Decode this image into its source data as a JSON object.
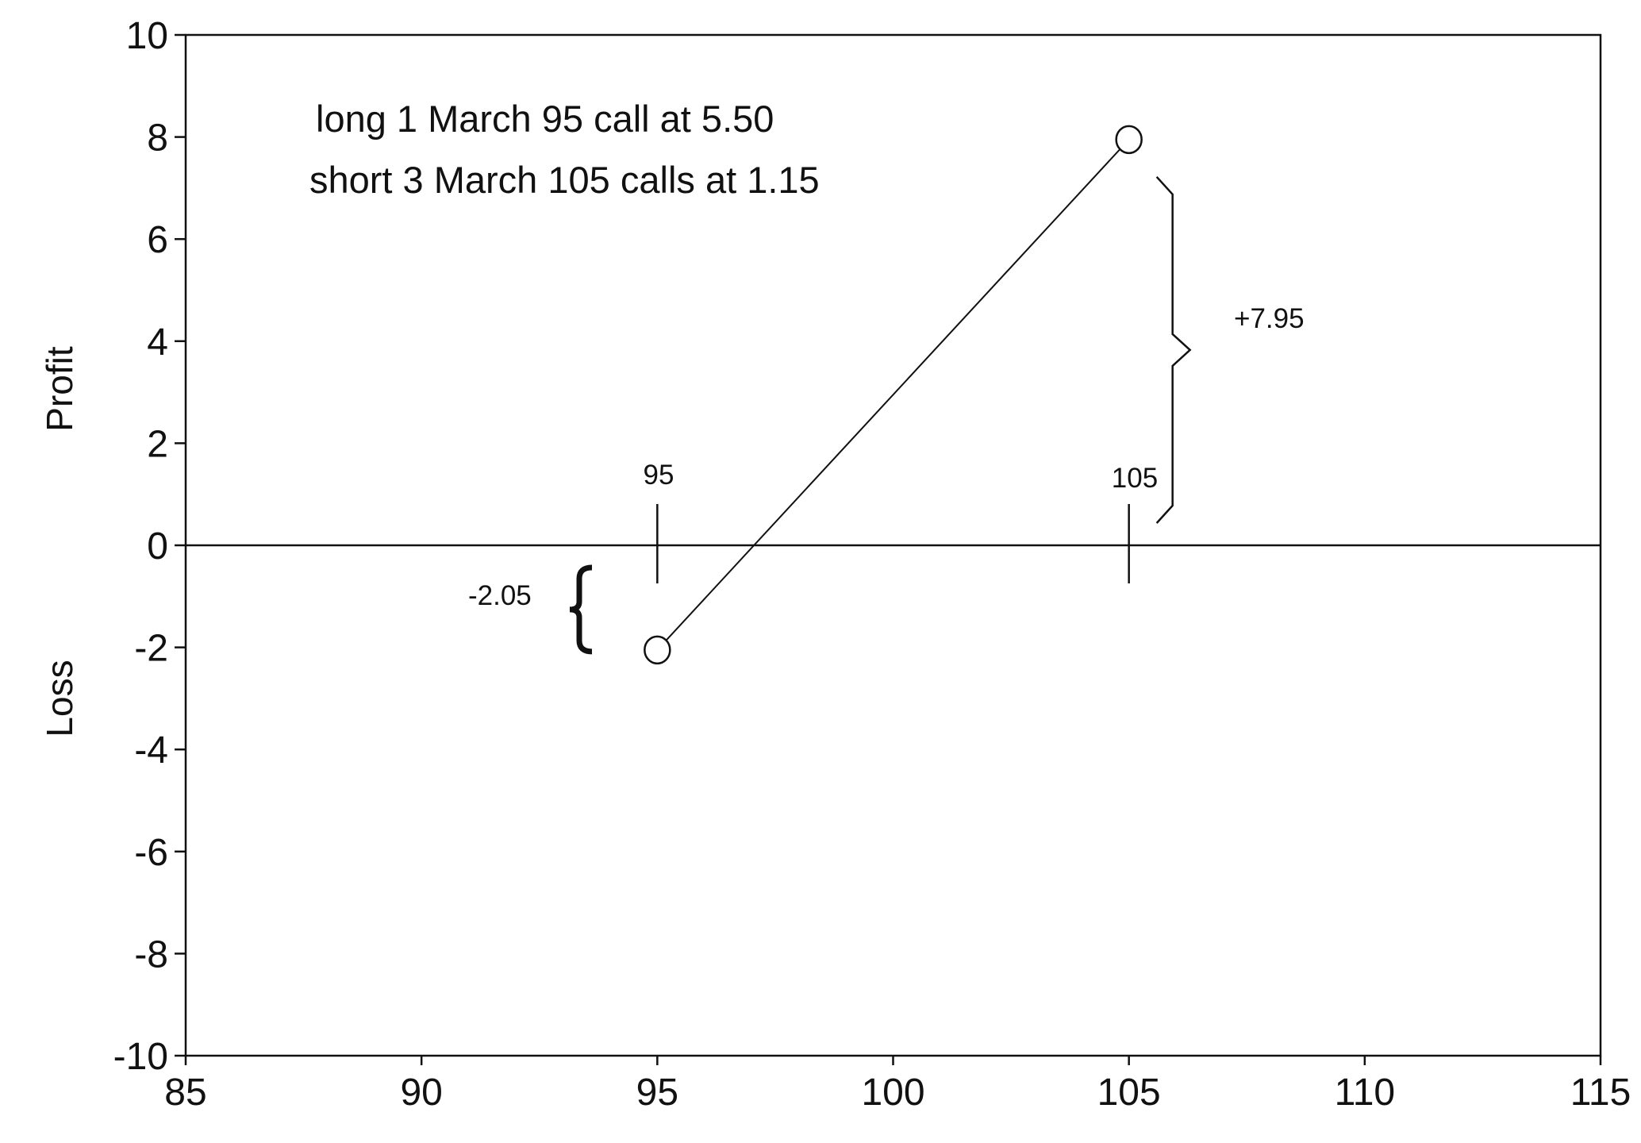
{
  "chart_data": {
    "type": "line",
    "title": "",
    "xlabel": "",
    "ylabel_top": "Profit",
    "ylabel_bottom": "Loss",
    "xlim": [
      85,
      115
    ],
    "ylim": [
      -10,
      10
    ],
    "x_ticks": [
      85,
      90,
      95,
      100,
      105,
      110,
      115
    ],
    "y_ticks": [
      10,
      8,
      6,
      4,
      2,
      0,
      -2,
      -4,
      -6,
      -8,
      -10
    ],
    "grid": false,
    "series": [
      {
        "points": [
          {
            "x": 95,
            "y": -2.05
          },
          {
            "x": 105,
            "y": 7.95
          }
        ]
      }
    ],
    "annotations": {
      "position_line1": "long 1 March 95 call at 5.50",
      "position_line2": "short 3 March 105 calls at 1.15",
      "max_profit_label": "+7.95",
      "max_loss_label": "-2.05",
      "strike_low_label": "95",
      "strike_high_label": "105",
      "strike_low": 95,
      "strike_high": 105,
      "max_profit": 7.95,
      "max_loss": -2.05
    }
  }
}
